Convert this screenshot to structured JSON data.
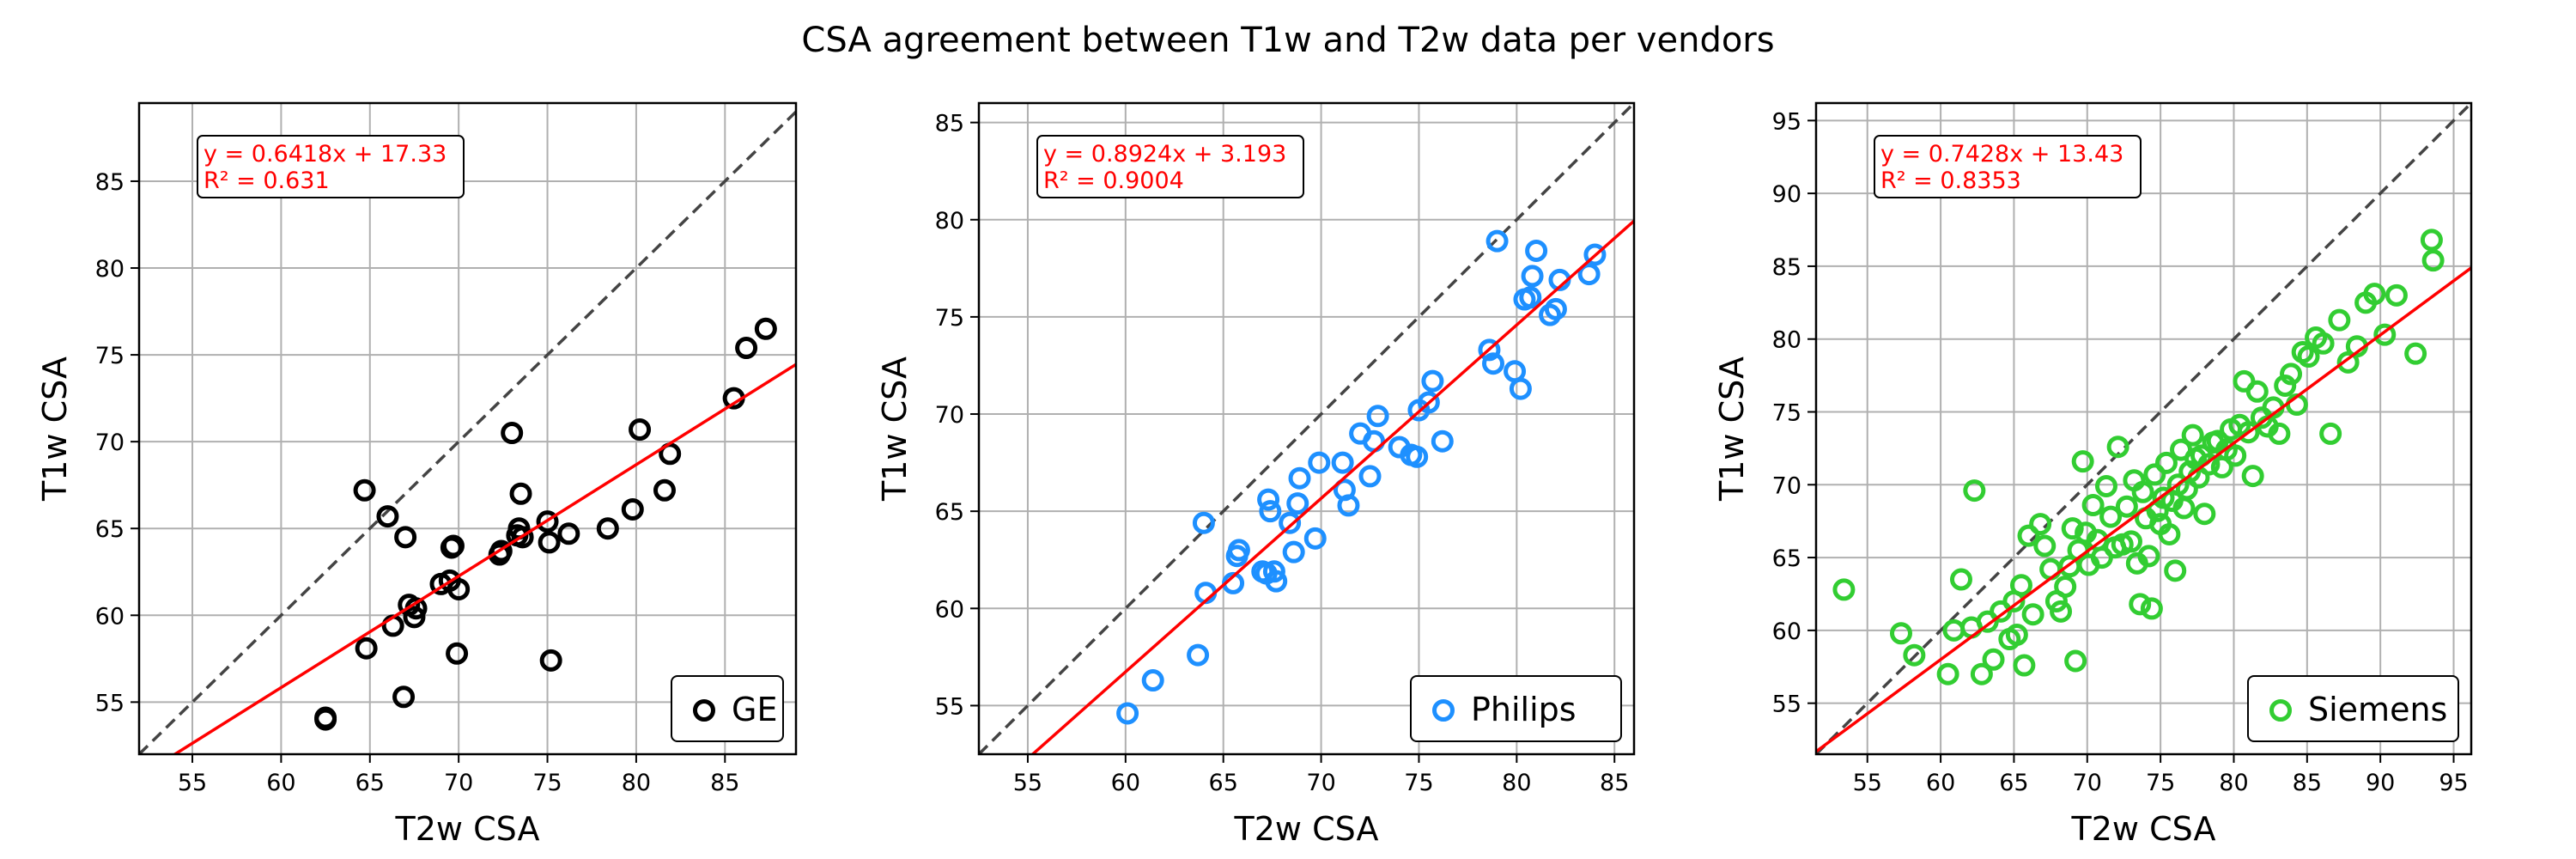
{
  "figure": {
    "title": "CSA agreement between T1w and T2w data per vendors"
  },
  "chart_data": [
    {
      "type": "scatter",
      "vendor": "GE",
      "xlabel": "T2w CSA",
      "ylabel": "T1w CSA",
      "xlim": [
        52,
        89
      ],
      "ylim": [
        52,
        89.5
      ],
      "xticks": [
        55,
        60,
        65,
        70,
        75,
        80,
        85
      ],
      "yticks": [
        55,
        60,
        65,
        70,
        75,
        80,
        85
      ],
      "grid": true,
      "legend_position": "lower-right",
      "equation": "y = 0.6418x + 17.33",
      "r_squared": "R² = 0.631",
      "fit": {
        "slope": 0.6418,
        "intercept": 17.33
      },
      "identity_line": true,
      "series": [
        {
          "name": "GE",
          "color": "#000000",
          "x": [
            62.5,
            62.5,
            64.7,
            64.8,
            66.0,
            66.3,
            66.9,
            67.0,
            67.2,
            67.5,
            67.6,
            69.0,
            69.5,
            69.6,
            69.7,
            69.9,
            70.0,
            72.3,
            72.4,
            73.0,
            73.3,
            73.4,
            73.5,
            73.6,
            75.0,
            75.1,
            75.2,
            76.2,
            78.4,
            79.8,
            80.2,
            81.6,
            81.9,
            85.5,
            86.2,
            87.3
          ],
          "y": [
            54.0,
            54.1,
            67.2,
            58.1,
            65.7,
            59.4,
            55.3,
            64.5,
            60.6,
            59.9,
            60.4,
            61.8,
            62.0,
            63.9,
            64.0,
            57.8,
            61.5,
            63.5,
            63.7,
            70.5,
            64.6,
            65.0,
            67.0,
            64.5,
            65.4,
            64.2,
            57.4,
            64.7,
            65.0,
            66.1,
            70.7,
            67.2,
            69.3,
            72.5,
            75.4,
            76.5
          ]
        }
      ]
    },
    {
      "type": "scatter",
      "vendor": "Philips",
      "xlabel": "T2w CSA",
      "ylabel": "T1w CSA",
      "xlim": [
        52.5,
        86
      ],
      "ylim": [
        52.5,
        86
      ],
      "xticks": [
        55,
        60,
        65,
        70,
        75,
        80,
        85
      ],
      "yticks": [
        55,
        60,
        65,
        70,
        75,
        80,
        85
      ],
      "grid": true,
      "legend_position": "lower-right",
      "equation": "y = 0.8924x + 3.193",
      "r_squared": "R² = 0.9004",
      "fit": {
        "slope": 0.8924,
        "intercept": 3.193
      },
      "identity_line": true,
      "series": [
        {
          "name": "Philips",
          "color": "#1e90ff",
          "x": [
            60.1,
            61.4,
            63.7,
            64.0,
            64.1,
            65.5,
            65.7,
            65.8,
            67.0,
            67.2,
            67.3,
            67.4,
            67.6,
            67.7,
            68.4,
            68.6,
            68.8,
            68.9,
            69.7,
            69.9,
            71.1,
            71.2,
            71.4,
            72.0,
            72.5,
            72.7,
            72.9,
            74.0,
            74.6,
            74.9,
            75.0,
            75.5,
            75.7,
            76.2,
            78.6,
            78.8,
            79.0,
            79.9,
            80.2,
            80.4,
            80.7,
            80.8,
            81.0,
            81.7,
            82.0,
            82.2,
            83.7,
            84.0
          ],
          "y": [
            54.6,
            56.3,
            57.6,
            64.4,
            60.8,
            61.3,
            62.7,
            63.0,
            61.9,
            61.8,
            65.6,
            65.0,
            61.9,
            61.4,
            64.4,
            62.9,
            65.4,
            66.7,
            63.6,
            67.5,
            67.5,
            66.1,
            65.3,
            69.0,
            66.8,
            68.6,
            69.9,
            68.3,
            67.9,
            67.8,
            70.2,
            70.6,
            71.7,
            68.6,
            73.3,
            72.6,
            78.9,
            72.2,
            71.3,
            75.9,
            76.0,
            77.1,
            78.4,
            75.1,
            75.4,
            76.9,
            77.2,
            78.2
          ]
        }
      ]
    },
    {
      "type": "scatter",
      "vendor": "Siemens",
      "xlabel": "T2w CSA",
      "ylabel": "T1w CSA",
      "xlim": [
        51.5,
        96.2
      ],
      "ylim": [
        51.5,
        96.2
      ],
      "xticks": [
        55,
        60,
        65,
        70,
        75,
        80,
        85,
        90,
        95
      ],
      "yticks": [
        55,
        60,
        65,
        70,
        75,
        80,
        85,
        90,
        95
      ],
      "grid": true,
      "legend_position": "lower-right",
      "equation": "y = 0.7428x + 13.43",
      "r_squared": "R² = 0.8353",
      "fit": {
        "slope": 0.7428,
        "intercept": 13.43
      },
      "identity_line": true,
      "series": [
        {
          "name": "Siemens",
          "color": "#32cd32",
          "x": [
            53.4,
            57.3,
            58.2,
            60.5,
            60.9,
            61.4,
            62.1,
            62.3,
            62.8,
            63.2,
            63.6,
            64.1,
            64.7,
            65.0,
            65.2,
            65.5,
            65.7,
            66.0,
            66.3,
            66.8,
            67.1,
            67.5,
            67.9,
            68.2,
            68.5,
            68.8,
            69.0,
            69.2,
            69.4,
            69.7,
            69.9,
            70.1,
            70.4,
            70.7,
            71.0,
            71.3,
            71.6,
            71.9,
            72.1,
            72.4,
            72.7,
            73.0,
            73.2,
            73.4,
            73.6,
            73.8,
            74.0,
            74.2,
            74.4,
            74.6,
            74.8,
            75.0,
            75.2,
            75.4,
            75.6,
            75.8,
            76.0,
            76.2,
            76.4,
            76.6,
            76.8,
            77.0,
            77.2,
            77.4,
            77.6,
            77.8,
            78.0,
            78.3,
            78.6,
            78.9,
            79.2,
            79.5,
            79.8,
            80.1,
            80.4,
            80.7,
            81.0,
            81.3,
            81.6,
            81.9,
            82.3,
            82.7,
            83.1,
            83.5,
            83.9,
            84.3,
            84.7,
            85.1,
            85.6,
            86.1,
            86.6,
            87.2,
            87.8,
            88.4,
            89.0,
            89.6,
            90.3,
            91.1,
            92.4,
            93.5,
            93.6
          ],
          "y": [
            62.8,
            59.8,
            58.3,
            57.0,
            60.0,
            63.5,
            60.2,
            69.6,
            57.0,
            60.6,
            58.0,
            61.3,
            59.4,
            62.0,
            59.7,
            63.1,
            57.6,
            66.5,
            61.1,
            67.3,
            65.8,
            64.2,
            62.0,
            61.3,
            63.0,
            64.4,
            67.0,
            57.9,
            65.5,
            71.6,
            66.7,
            64.5,
            68.6,
            66.2,
            65.0,
            69.9,
            67.8,
            65.7,
            72.6,
            65.9,
            68.5,
            66.1,
            70.3,
            64.6,
            61.8,
            69.5,
            67.7,
            65.1,
            61.5,
            70.7,
            68.2,
            67.3,
            69.1,
            71.5,
            66.6,
            68.9,
            64.1,
            70.0,
            72.4,
            68.4,
            69.7,
            70.9,
            73.4,
            71.8,
            70.5,
            72.0,
            68.0,
            71.4,
            72.9,
            73.0,
            71.2,
            72.4,
            73.8,
            72.0,
            74.1,
            77.1,
            73.6,
            70.6,
            76.4,
            74.6,
            74.0,
            75.3,
            73.5,
            76.8,
            77.6,
            75.5,
            79.1,
            78.8,
            80.1,
            79.7,
            73.5,
            81.3,
            78.4,
            79.5,
            82.5,
            83.1,
            80.3,
            83.0,
            79.0,
            86.8,
            85.4
          ]
        }
      ]
    }
  ]
}
